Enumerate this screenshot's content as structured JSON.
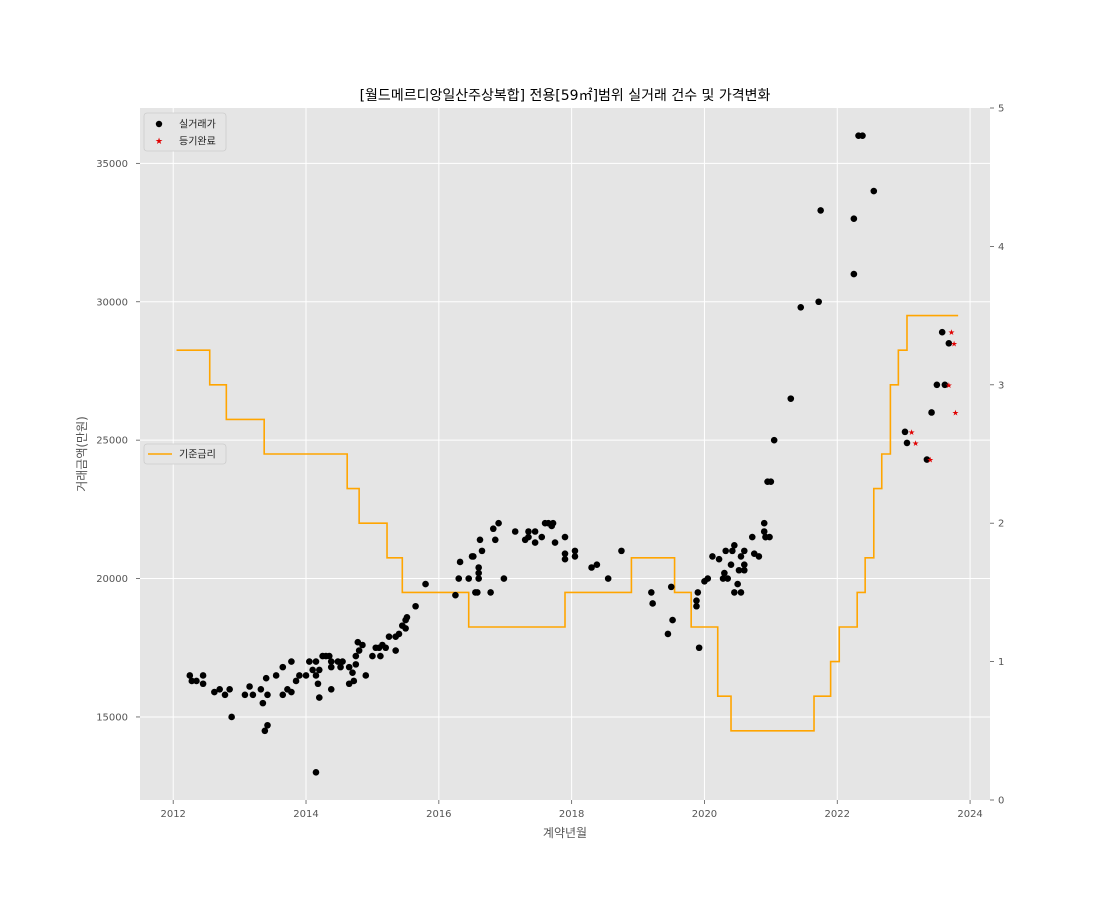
{
  "chart_data": {
    "type": "scatter",
    "title": "[월드메르디앙일산주상복합] 전용[59㎡]범위 실거래 건수 및 가격변화",
    "xlabel": "계약년월",
    "ylabel": "거래금액(만원)",
    "x_ticks": [
      "2012",
      "2014",
      "2016",
      "2018",
      "2020",
      "2022",
      "2024"
    ],
    "y_ticks": [
      "15000",
      "20000",
      "25000",
      "30000",
      "35000"
    ],
    "y2_ticks": [
      "0",
      "1",
      "2",
      "3",
      "4",
      "5"
    ],
    "xlim": [
      2011.5,
      2024.3
    ],
    "ylim": [
      12000,
      37000
    ],
    "y2lim": [
      0,
      5
    ],
    "grid": true,
    "legend_top_left": [
      "실거래가",
      "등기완료"
    ],
    "legend_middle_left": [
      "기준금리"
    ],
    "colors": {
      "transactions": "#000000",
      "registered": "#e00000",
      "base_rate": "#ffa500",
      "plot_bg": "#e5e5e5",
      "grid": "#ffffff"
    },
    "series": [
      {
        "name": "실거래가",
        "type": "scatter",
        "points": [
          [
            2012.25,
            16500
          ],
          [
            2012.28,
            16300
          ],
          [
            2012.35,
            16300
          ],
          [
            2012.45,
            16500
          ],
          [
            2012.45,
            16200
          ],
          [
            2012.62,
            15900
          ],
          [
            2012.7,
            16000
          ],
          [
            2012.78,
            15800
          ],
          [
            2012.85,
            16000
          ],
          [
            2012.88,
            15000
          ],
          [
            2013.08,
            15800
          ],
          [
            2013.15,
            16100
          ],
          [
            2013.2,
            15800
          ],
          [
            2013.32,
            16000
          ],
          [
            2013.35,
            15500
          ],
          [
            2013.38,
            14500
          ],
          [
            2013.42,
            14700
          ],
          [
            2013.4,
            16400
          ],
          [
            2013.42,
            15800
          ],
          [
            2013.55,
            16500
          ],
          [
            2013.65,
            15800
          ],
          [
            2013.65,
            16800
          ],
          [
            2013.72,
            16000
          ],
          [
            2013.78,
            15900
          ],
          [
            2013.78,
            17000
          ],
          [
            2013.85,
            16300
          ],
          [
            2013.9,
            16500
          ],
          [
            2014.0,
            16500
          ],
          [
            2014.05,
            17000
          ],
          [
            2014.1,
            16700
          ],
          [
            2014.15,
            17000
          ],
          [
            2014.15,
            16500
          ],
          [
            2014.18,
            16200
          ],
          [
            2014.2,
            15700
          ],
          [
            2014.2,
            16700
          ],
          [
            2014.25,
            17200
          ],
          [
            2014.3,
            17200
          ],
          [
            2014.35,
            17200
          ],
          [
            2014.38,
            16800
          ],
          [
            2014.38,
            16000
          ],
          [
            2014.38,
            17000
          ],
          [
            2014.48,
            17000
          ],
          [
            2014.52,
            16800
          ],
          [
            2014.55,
            17000
          ],
          [
            2014.65,
            16800
          ],
          [
            2014.65,
            16200
          ],
          [
            2014.7,
            16600
          ],
          [
            2014.72,
            16300
          ],
          [
            2014.75,
            16900
          ],
          [
            2014.75,
            17200
          ],
          [
            2014.78,
            17700
          ],
          [
            2014.8,
            17400
          ],
          [
            2014.85,
            17600
          ],
          [
            2014.9,
            16500
          ],
          [
            2015.0,
            17200
          ],
          [
            2015.05,
            17500
          ],
          [
            2015.1,
            17500
          ],
          [
            2015.12,
            17200
          ],
          [
            2015.15,
            17600
          ],
          [
            2015.2,
            17500
          ],
          [
            2015.25,
            17900
          ],
          [
            2015.35,
            17400
          ],
          [
            2015.35,
            17900
          ],
          [
            2015.4,
            18000
          ],
          [
            2015.45,
            18300
          ],
          [
            2015.5,
            18200
          ],
          [
            2015.5,
            18500
          ],
          [
            2015.52,
            18600
          ],
          [
            2015.65,
            19000
          ],
          [
            2015.8,
            19800
          ],
          [
            2014.15,
            13000
          ],
          [
            2016.25,
            19400
          ],
          [
            2016.3,
            20000
          ],
          [
            2016.32,
            20600
          ],
          [
            2016.45,
            20000
          ],
          [
            2016.5,
            20800
          ],
          [
            2016.52,
            20800
          ],
          [
            2016.55,
            19500
          ],
          [
            2016.58,
            19500
          ],
          [
            2016.6,
            20000
          ],
          [
            2016.6,
            20400
          ],
          [
            2016.6,
            20200
          ],
          [
            2016.65,
            21000
          ],
          [
            2016.62,
            21400
          ],
          [
            2016.78,
            19500
          ],
          [
            2016.82,
            21800
          ],
          [
            2016.85,
            21400
          ],
          [
            2016.9,
            22000
          ],
          [
            2016.98,
            20000
          ],
          [
            2017.15,
            21700
          ],
          [
            2017.3,
            21400
          ],
          [
            2017.35,
            21700
          ],
          [
            2017.35,
            21500
          ],
          [
            2017.45,
            21700
          ],
          [
            2017.45,
            21300
          ],
          [
            2017.55,
            21500
          ],
          [
            2017.6,
            22000
          ],
          [
            2017.65,
            22000
          ],
          [
            2017.7,
            21900
          ],
          [
            2017.72,
            22000
          ],
          [
            2017.75,
            21300
          ],
          [
            2017.9,
            21500
          ],
          [
            2017.9,
            20900
          ],
          [
            2017.9,
            20700
          ],
          [
            2018.05,
            21000
          ],
          [
            2018.05,
            20800
          ],
          [
            2018.3,
            20400
          ],
          [
            2018.38,
            20500
          ],
          [
            2018.55,
            20000
          ],
          [
            2018.75,
            21000
          ],
          [
            2019.2,
            19500
          ],
          [
            2019.22,
            19100
          ],
          [
            2019.45,
            18000
          ],
          [
            2019.5,
            19700
          ],
          [
            2019.52,
            18500
          ],
          [
            2019.88,
            19000
          ],
          [
            2019.88,
            19200
          ],
          [
            2019.9,
            19500
          ],
          [
            2019.92,
            17500
          ],
          [
            2020.0,
            19900
          ],
          [
            2020.05,
            20000
          ],
          [
            2020.12,
            20800
          ],
          [
            2020.22,
            20700
          ],
          [
            2020.28,
            20000
          ],
          [
            2020.3,
            20200
          ],
          [
            2020.32,
            21000
          ],
          [
            2020.35,
            20000
          ],
          [
            2020.4,
            20500
          ],
          [
            2020.42,
            21000
          ],
          [
            2020.45,
            19500
          ],
          [
            2020.45,
            21200
          ],
          [
            2020.5,
            19800
          ],
          [
            2020.52,
            20300
          ],
          [
            2020.55,
            20800
          ],
          [
            2020.55,
            19500
          ],
          [
            2020.6,
            21000
          ],
          [
            2020.6,
            20300
          ],
          [
            2020.6,
            20500
          ],
          [
            2020.72,
            21500
          ],
          [
            2020.75,
            20900
          ],
          [
            2020.82,
            20800
          ],
          [
            2020.9,
            22000
          ],
          [
            2020.9,
            21700
          ],
          [
            2020.92,
            21500
          ],
          [
            2020.92,
            21500
          ],
          [
            2020.95,
            23500
          ],
          [
            2020.98,
            21500
          ],
          [
            2021.0,
            23500
          ],
          [
            2021.05,
            25000
          ],
          [
            2021.3,
            26500
          ],
          [
            2021.45,
            29800
          ],
          [
            2021.72,
            30000
          ],
          [
            2021.75,
            33300
          ],
          [
            2022.25,
            33000
          ],
          [
            2022.25,
            31000
          ],
          [
            2022.32,
            36000
          ],
          [
            2022.38,
            36000
          ],
          [
            2022.55,
            34000
          ],
          [
            2023.02,
            25300
          ],
          [
            2023.05,
            24900
          ],
          [
            2023.35,
            24300
          ],
          [
            2023.42,
            26000
          ],
          [
            2023.5,
            27000
          ],
          [
            2023.58,
            28900
          ],
          [
            2023.62,
            27000
          ],
          [
            2023.68,
            28500
          ]
        ]
      },
      {
        "name": "등기완료",
        "type": "scatter",
        "points": [
          [
            2023.12,
            25300
          ],
          [
            2023.18,
            24900
          ],
          [
            2023.4,
            24300
          ],
          [
            2023.68,
            27000
          ],
          [
            2023.72,
            28900
          ],
          [
            2023.76,
            28500
          ],
          [
            2023.78,
            26000
          ]
        ]
      },
      {
        "name": "기준금리",
        "type": "step",
        "axis": "right",
        "points": [
          [
            2012.05,
            3.25
          ],
          [
            2012.55,
            3.0
          ],
          [
            2012.8,
            2.75
          ],
          [
            2013.37,
            2.5
          ],
          [
            2014.62,
            2.25
          ],
          [
            2014.8,
            2.0
          ],
          [
            2015.22,
            1.75
          ],
          [
            2015.45,
            1.5
          ],
          [
            2016.45,
            1.25
          ],
          [
            2017.9,
            1.5
          ],
          [
            2018.9,
            1.75
          ],
          [
            2019.55,
            1.5
          ],
          [
            2019.8,
            1.25
          ],
          [
            2020.2,
            0.75
          ],
          [
            2020.4,
            0.5
          ],
          [
            2021.65,
            0.75
          ],
          [
            2021.9,
            1.0
          ],
          [
            2022.03,
            1.25
          ],
          [
            2022.3,
            1.5
          ],
          [
            2022.42,
            1.75
          ],
          [
            2022.55,
            2.25
          ],
          [
            2022.67,
            2.5
          ],
          [
            2022.8,
            3.0
          ],
          [
            2022.92,
            3.25
          ],
          [
            2023.05,
            3.5
          ],
          [
            2023.82,
            3.5
          ]
        ]
      }
    ]
  }
}
